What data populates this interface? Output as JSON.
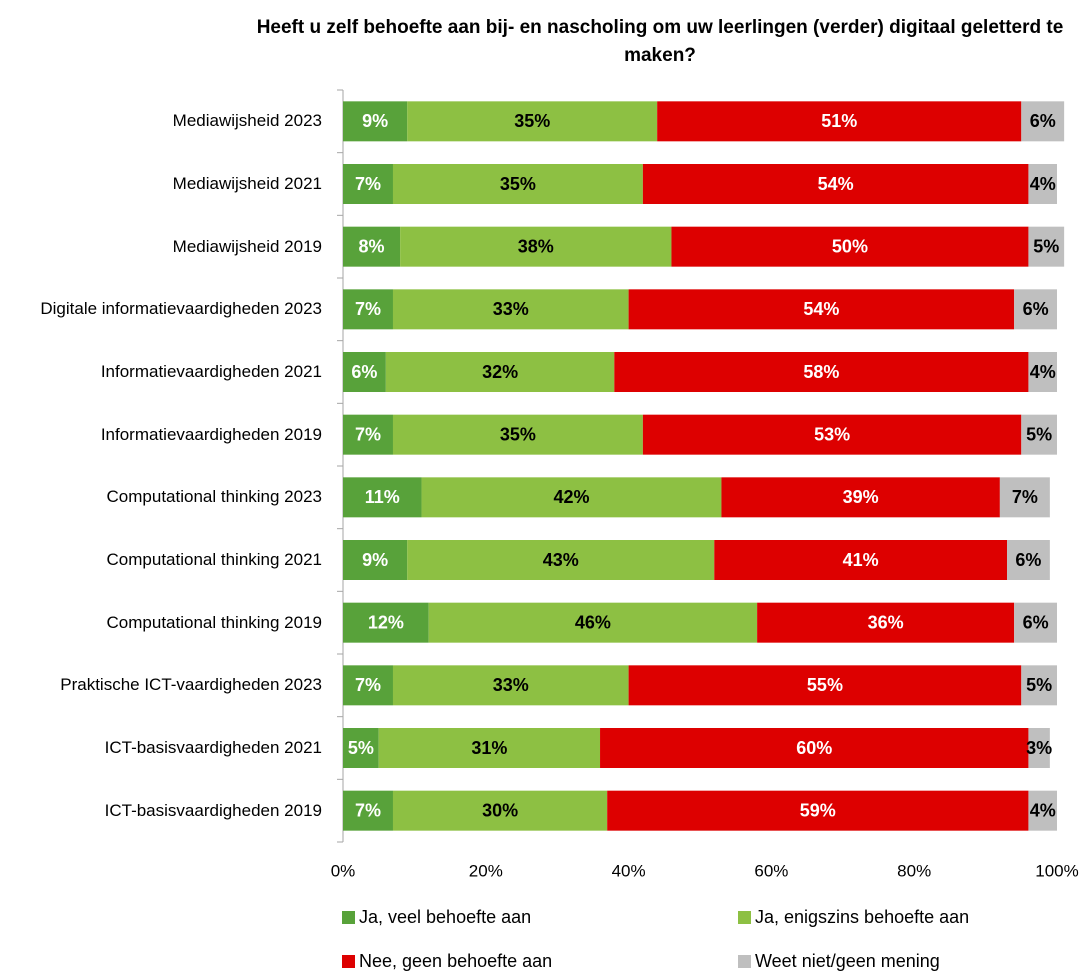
{
  "chart_data": {
    "type": "stacked_barh",
    "title": "Heeft u zelf behoefte aan bij- en nascholing om uw leerlingen (verder) digitaal geletterd te maken?",
    "categories": [
      "Mediawijsheid 2023",
      "Mediawijsheid 2021",
      "Mediawijsheid 2019",
      "Digitale informatievaardigheden 2023",
      "Informatievaardigheden 2021",
      "Informatievaardigheden 2019",
      "Computational thinking 2023",
      "Computational thinking 2021",
      "Computational thinking 2019",
      "Praktische ICT-vaardigheden 2023",
      "ICT-basisvaardigheden 2021",
      "ICT-basisvaardigheden 2019"
    ],
    "series": [
      {
        "name": "Ja, veel behoefte aan",
        "color": "#58a23a",
        "label_color": "#ffffff",
        "values": [
          9,
          7,
          8,
          7,
          6,
          7,
          11,
          9,
          12,
          7,
          5,
          7
        ],
        "value_labels": [
          "9%",
          "7%",
          "8%",
          "7%",
          "6%",
          "7%",
          "11%",
          "9%",
          "12%",
          "7%",
          "5%",
          "7%"
        ]
      },
      {
        "name": "Ja, enigszins behoefte aan",
        "color": "#8dc043",
        "label_color": "#000000",
        "values": [
          35,
          35,
          38,
          33,
          32,
          35,
          42,
          43,
          46,
          33,
          31,
          30
        ],
        "value_labels": [
          "35%",
          "35%",
          "38%",
          "33%",
          "32%",
          "35%",
          "42%",
          "43%",
          "46%",
          "33%",
          "31%",
          "30%"
        ]
      },
      {
        "name": "Nee, geen behoefte aan",
        "color": "#dd0000",
        "label_color": "#ffffff",
        "values": [
          51,
          54,
          50,
          54,
          58,
          53,
          39,
          41,
          36,
          55,
          60,
          59
        ],
        "value_labels": [
          "51%",
          "54%",
          "50%",
          "54%",
          "58%",
          "53%",
          "39%",
          "41%",
          "36%",
          "55%",
          "60%",
          "59%"
        ]
      },
      {
        "name": "Weet niet/geen mening",
        "color": "#bfbfbf",
        "label_color": "#000000",
        "values": [
          6,
          4,
          5,
          6,
          4,
          5,
          7,
          6,
          6,
          5,
          3,
          4
        ],
        "value_labels": [
          "6%",
          "4%",
          "5%",
          "6%",
          "4%",
          "5%",
          "7%",
          "6%",
          "6%",
          "5%",
          "3%",
          "4%"
        ]
      }
    ],
    "xlim": [
      0,
      100
    ],
    "xticks": [
      {
        "value": 0,
        "label": "0%"
      },
      {
        "value": 20,
        "label": "20%"
      },
      {
        "value": 40,
        "label": "40%"
      },
      {
        "value": 60,
        "label": "60%"
      },
      {
        "value": 80,
        "label": "80%"
      },
      {
        "value": 100,
        "label": "100%"
      }
    ],
    "grid": false,
    "legend": "bottom"
  }
}
